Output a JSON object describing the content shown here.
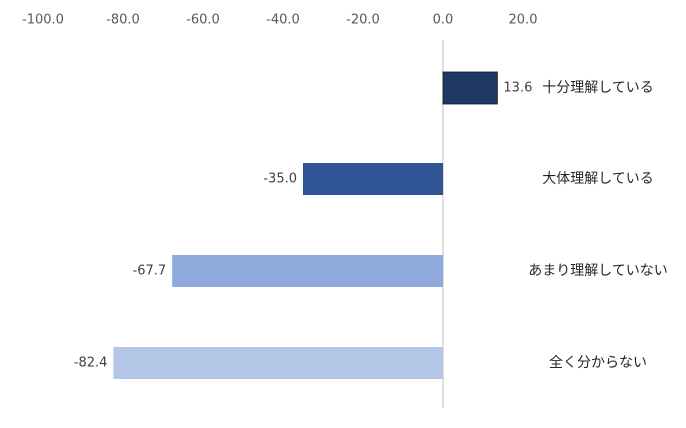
{
  "chart_data": {
    "type": "bar",
    "orientation": "horizontal",
    "categories": [
      "十分理解している",
      "大体理解している",
      "あまり理解していない",
      "全く分からない"
    ],
    "values": [
      13.6,
      -35.0,
      -67.7,
      -82.4
    ],
    "data_labels": [
      "13.6",
      "-35.0",
      "-67.7",
      "-82.4"
    ],
    "xlim": [
      -100,
      20
    ],
    "xticks": [
      -100,
      -80,
      -60,
      -40,
      -20,
      0,
      20
    ],
    "xtick_labels": [
      "-100.0",
      "-80.0",
      "-60.0",
      "-40.0",
      "-20.0",
      "0.0",
      "20.0"
    ],
    "xaxis_position": "top",
    "grid": false,
    "colors": [
      "#203864",
      "#2F5597",
      "#8FAADC",
      "#B4C7E7"
    ],
    "title": "",
    "xlabel": "",
    "ylabel": ""
  }
}
